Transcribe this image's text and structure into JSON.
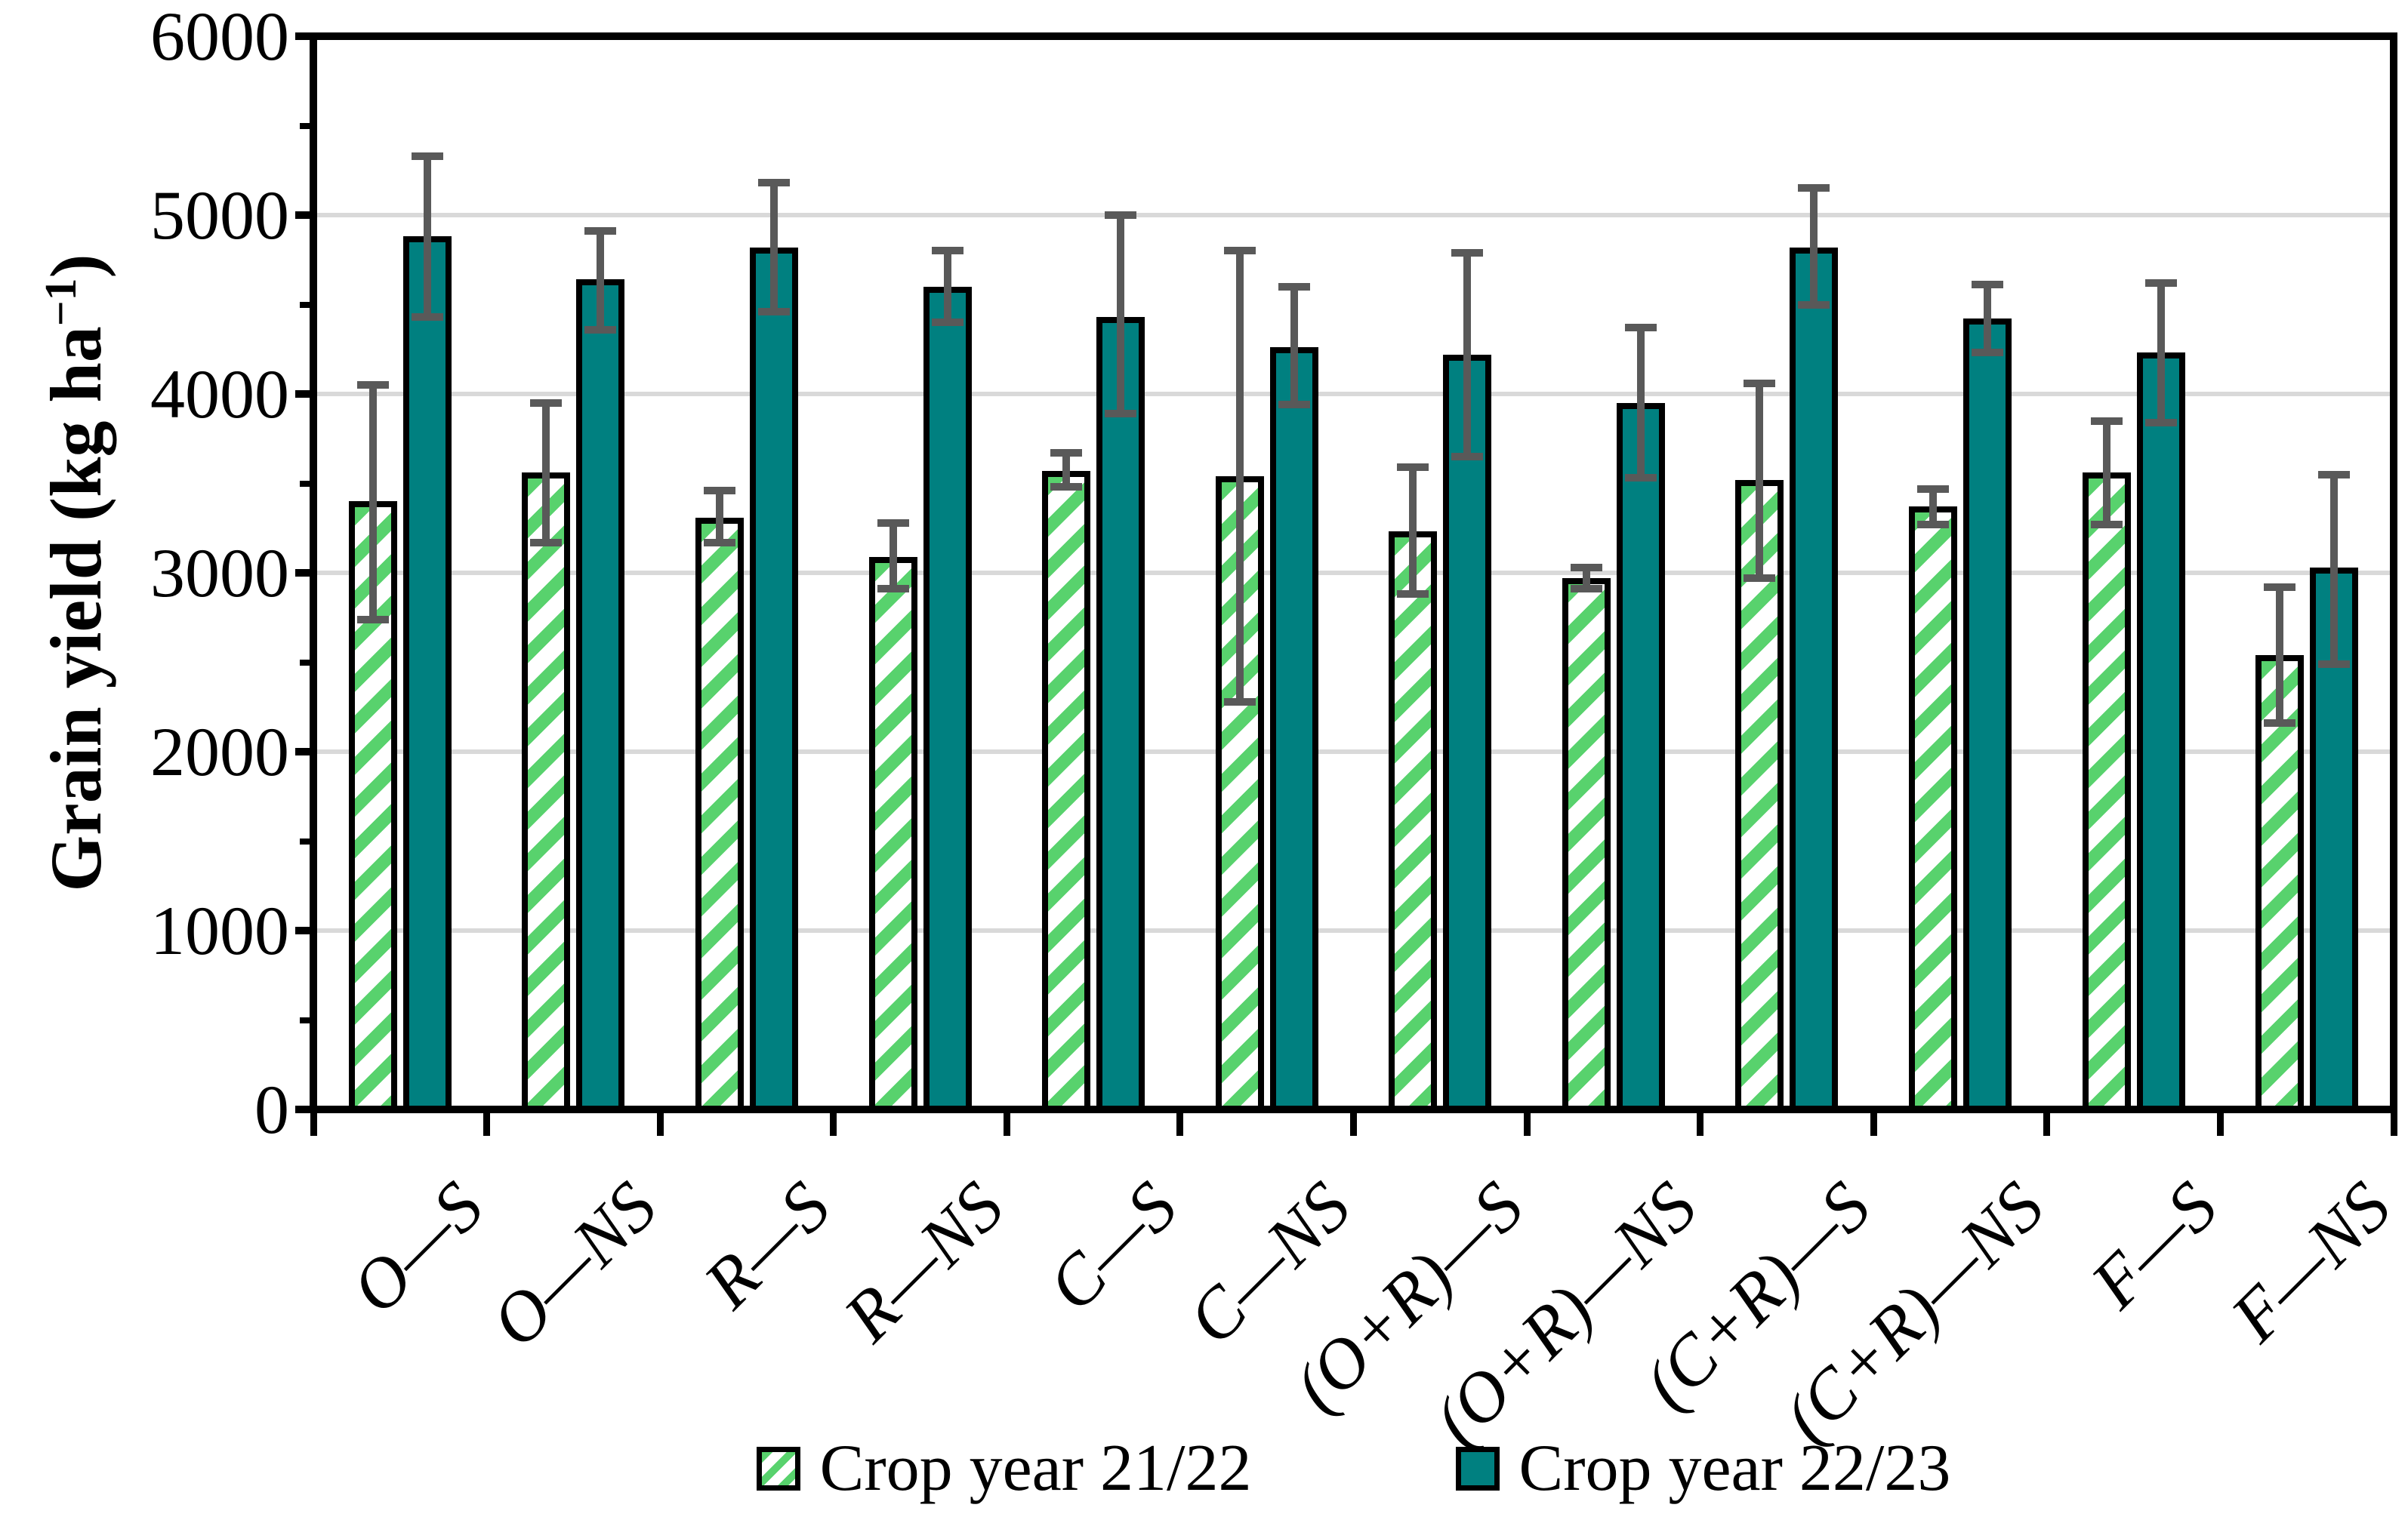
{
  "chart_data": {
    "type": "bar",
    "title": "",
    "xlabel": "",
    "ylabel": "Grain yield (kg ha−1)",
    "ylabel_parts": [
      "Grain yield (kg ha",
      "−1",
      ")"
    ],
    "ylim": [
      0,
      6000
    ],
    "ytick_major": 1000,
    "ytick_minor": 500,
    "ytick_labels": [
      "0",
      "1000",
      "2000",
      "3000",
      "4000",
      "5000",
      "6000"
    ],
    "grid": "horizontal-major-only",
    "legend_position": "bottom-center",
    "categories": [
      "O—S",
      "O—NS",
      "R—S",
      "R—NS",
      "C—S",
      "C—NS",
      "(O+R)—S",
      "(O+R)—NS",
      "(C+R)—S",
      "(C+R)—NS",
      "F—S",
      "F—NS"
    ],
    "series": [
      {
        "name": "Crop year 21/22",
        "style": "hatched-green-diagonal",
        "values": [
          3400,
          3560,
          3310,
          3090,
          3570,
          3540,
          3230,
          2970,
          3520,
          3370,
          3560,
          2540
        ],
        "err_low": [
          2740,
          3170,
          3170,
          2910,
          3480,
          2280,
          2880,
          2910,
          2970,
          3270,
          3270,
          2160
        ],
        "err_high": [
          4050,
          3950,
          3460,
          3280,
          3670,
          4800,
          3590,
          3030,
          4060,
          3470,
          3850,
          2920
        ]
      },
      {
        "name": "Crop year 22/23",
        "style": "solid-teal",
        "values": [
          4880,
          4640,
          4820,
          4600,
          4430,
          4260,
          4220,
          3950,
          4820,
          4420,
          4230,
          3030
        ],
        "err_low": [
          4430,
          4360,
          4460,
          4400,
          3890,
          3940,
          3650,
          3530,
          4500,
          4230,
          3840,
          2490
        ],
        "err_high": [
          5330,
          4910,
          5180,
          4800,
          5000,
          4600,
          4790,
          4370,
          5150,
          4610,
          4620,
          3550
        ]
      }
    ]
  },
  "colors": {
    "teal_fill": "#008080",
    "hatch_green": "#58D26D",
    "hatch_background": "#FFFFFF",
    "error_bar": "#595959",
    "gridline": "#D9D9D9",
    "axis": "#000000",
    "text": "#000000"
  }
}
